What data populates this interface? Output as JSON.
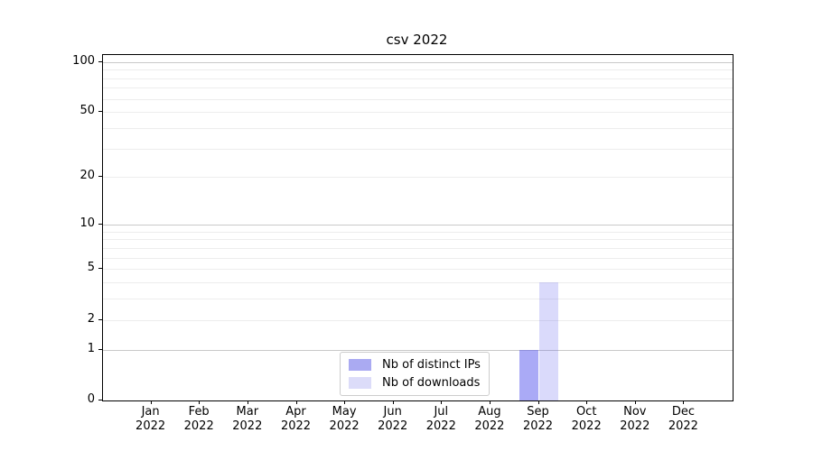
{
  "figure": {
    "background": "#ffffff"
  },
  "chart_data": {
    "type": "bar",
    "title": "csv 2022",
    "categories": [
      "Jan",
      "Feb",
      "Mar",
      "Apr",
      "May",
      "Jun",
      "Jul",
      "Aug",
      "Sep",
      "Oct",
      "Nov",
      "Dec"
    ],
    "category_year": "2022",
    "series": [
      {
        "name": "Nb of distinct IPs",
        "color": "rgba(85,85,238,0.5)",
        "legend_color": "#aaaaf2",
        "values": [
          0,
          0,
          0,
          0,
          0,
          0,
          0,
          0,
          1,
          0,
          0,
          0
        ]
      },
      {
        "name": "Nb of downloads",
        "color": "rgba(85,85,238,0.22)",
        "legend_color": "#dcdcf9",
        "values": [
          0,
          0,
          0,
          0,
          0,
          0,
          0,
          0,
          4,
          0,
          0,
          0
        ]
      }
    ],
    "xlabel": "",
    "ylabel": "",
    "yscale": "log1p",
    "ylim": [
      0,
      110
    ],
    "yticks": [
      0,
      1,
      2,
      5,
      10,
      20,
      50,
      100
    ],
    "minor_gridlines": [
      3,
      4,
      6,
      7,
      8,
      9,
      30,
      40,
      60,
      70,
      80,
      90
    ],
    "grid": "horizontal",
    "legend_position": "lower-center",
    "colors": {
      "major_grid": "#c9c9c9",
      "minor_grid": "#ededed",
      "spine": "#000000",
      "tick_label": "#000000"
    }
  }
}
